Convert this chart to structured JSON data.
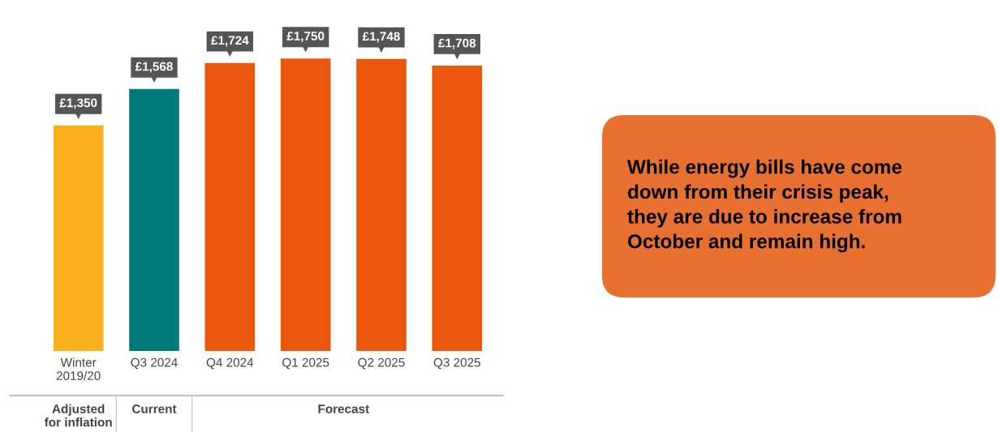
{
  "chart_data": {
    "type": "bar",
    "categories": [
      "Winter\n2019/20",
      "Q3 2024",
      "Q4 2024",
      "Q1 2025",
      "Q2 2025",
      "Q3 2025"
    ],
    "values": [
      1350,
      1568,
      1724,
      1750,
      1748,
      1708
    ],
    "colors": [
      "#f8b01d",
      "#007b7b",
      "#e9560c",
      "#e9560c",
      "#e9560c",
      "#e9560c"
    ],
    "value_labels": [
      "£1,350",
      "£1,568",
      "£1,724",
      "£1,750",
      "£1,748",
      "£1,708"
    ],
    "grid": false,
    "legend": false,
    "annotations": [
      "Adjusted\nfor inflation",
      "Current",
      "Forecast",
      "While energy bills have come\ndown from their crisis peak,\nthey are due to increase from\nOctober and remain high."
    ]
  }
}
